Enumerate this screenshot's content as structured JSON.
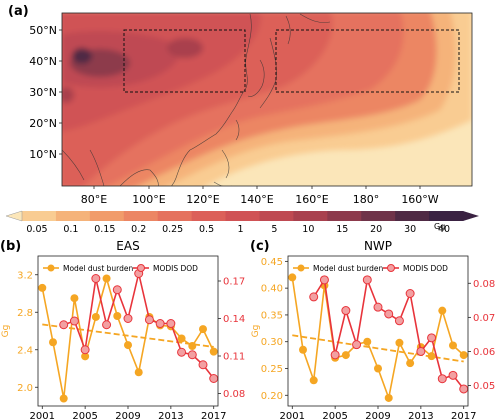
{
  "panel_a": {
    "label": "(a)",
    "lat_ticks": [
      "10°N",
      "20°N",
      "30°N",
      "40°N",
      "50°N"
    ],
    "lon_ticks": [
      "80°E",
      "100°E",
      "120°E",
      "140°E",
      "160°E",
      "180°",
      "160°W"
    ],
    "colorbar": {
      "ticks": [
        "0.05",
        "0.1",
        "0.15",
        "0.2",
        "0.25",
        "0.5",
        "1",
        "5",
        "10",
        "15",
        "20",
        "30",
        "40"
      ],
      "unit": "Gg",
      "colors": [
        "#fbe6b9",
        "#f9cc92",
        "#f5b37a",
        "#f19c6b",
        "#ec8664",
        "#e5725e",
        "#dc6059",
        "#d05255",
        "#bf4a52",
        "#a9414e",
        "#8d3a4c",
        "#6f3349",
        "#4f2a44",
        "#3a2242"
      ]
    },
    "boxes": [
      "EAS",
      "NWP"
    ]
  },
  "chart_data": [
    {
      "type": "line",
      "panel": "(b)",
      "title": "EAS",
      "x": [
        2001,
        2002,
        2003,
        2004,
        2005,
        2006,
        2007,
        2008,
        2009,
        2010,
        2011,
        2012,
        2013,
        2014,
        2015,
        2016,
        2017
      ],
      "xticks": [
        "2001",
        "2005",
        "2009",
        "2013",
        "2017"
      ],
      "ylabel": "Gg",
      "ylim_left": [
        1.8,
        3.4
      ],
      "yticks_left": [
        "2.0",
        "2.4",
        "2.8",
        "3.2"
      ],
      "ylim_right": [
        0.07,
        0.19
      ],
      "yticks_right": [
        "0.08",
        "0.11",
        "0.14",
        "0.17"
      ],
      "series": [
        {
          "name": "Model dust burden",
          "axis": "left",
          "color": "#f5a623",
          "values": [
            3.06,
            2.48,
            1.88,
            2.95,
            2.33,
            2.75,
            3.16,
            2.76,
            2.45,
            2.16,
            2.75,
            2.66,
            2.65,
            2.52,
            2.44,
            2.62,
            2.38
          ]
        },
        {
          "name": "MODIS DOD",
          "axis": "right",
          "color": "#e8343b",
          "values": [
            null,
            null,
            0.135,
            0.138,
            0.115,
            0.172,
            0.135,
            0.163,
            0.14,
            0.176,
            0.139,
            0.136,
            0.136,
            0.113,
            0.111,
            0.103,
            0.092
          ]
        }
      ],
      "trend": {
        "axis": "left",
        "from": 2.67,
        "to": 2.43,
        "color": "#f5a623"
      },
      "legend": "top"
    },
    {
      "type": "line",
      "panel": "(c)",
      "title": "NWP",
      "x": [
        2001,
        2002,
        2003,
        2004,
        2005,
        2006,
        2007,
        2008,
        2009,
        2010,
        2011,
        2012,
        2013,
        2014,
        2015,
        2016,
        2017
      ],
      "xticks": [
        "2001",
        "2005",
        "2009",
        "2013",
        "2017"
      ],
      "ylabel": "Gg",
      "ylim_left": [
        0.18,
        0.46
      ],
      "yticks_left": [
        "0.20",
        "0.25",
        "0.30",
        "0.35",
        "0.40",
        "0.45"
      ],
      "ylim_right": [
        0.044,
        0.088
      ],
      "yticks_right": [
        "0.05",
        "0.06",
        "0.07",
        "0.08"
      ],
      "series": [
        {
          "name": "Model dust burden",
          "axis": "left",
          "color": "#f5a623",
          "values": [
            0.42,
            0.285,
            0.228,
            0.405,
            0.27,
            0.275,
            0.295,
            0.3,
            0.25,
            0.195,
            0.298,
            0.26,
            0.29,
            0.273,
            0.358,
            0.293,
            0.275
          ]
        },
        {
          "name": "MODIS DOD",
          "axis": "right",
          "color": "#e8343b",
          "values": [
            null,
            null,
            0.076,
            0.081,
            0.059,
            0.072,
            0.062,
            0.081,
            0.073,
            0.071,
            0.069,
            0.077,
            0.06,
            0.064,
            0.052,
            0.053,
            0.049
          ]
        }
      ],
      "trend": {
        "axis": "left",
        "from": 0.312,
        "to": 0.263,
        "color": "#f5a623"
      },
      "legend": "top"
    }
  ]
}
